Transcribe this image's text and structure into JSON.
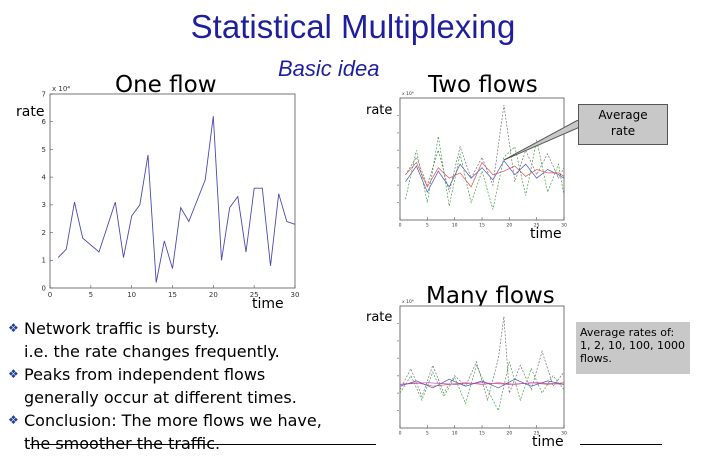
{
  "slide": {
    "title": "Statistical Multiplexing",
    "subtitle": "Basic idea",
    "callout": {
      "line1": "Average",
      "line2": "rate"
    },
    "note": {
      "line1": "Average rates of:",
      "line2": "1, 2, 10, 100, 1000",
      "line3": "flows."
    },
    "bullets": [
      {
        "marker": "❖",
        "line1": "Network traffic is bursty.",
        "line2": "i.e. the rate changes frequently."
      },
      {
        "marker": "❖",
        "line1": "Peaks from independent flows",
        "line2": "generally occur at different times."
      },
      {
        "marker": "❖",
        "line1": "Conclusion: The more flows we have,",
        "line2": "the smoother the traffic."
      }
    ]
  },
  "chart_data": [
    {
      "type": "line",
      "title": "One flow",
      "xlabel": "time",
      "ylabel": "rate",
      "exponent_label": "x 10⁴",
      "xlim": [
        0,
        30
      ],
      "ylim": [
        0,
        7
      ],
      "xticks": [
        "0",
        "5",
        "10",
        "15",
        "20",
        "25",
        "30"
      ],
      "yticks": [
        "0",
        "1",
        "2",
        "3",
        "4",
        "5",
        "6",
        "7"
      ],
      "series": [
        {
          "color": "#4a4ab0",
          "values": [
            [
              1,
              1.1
            ],
            [
              2,
              1.4
            ],
            [
              3,
              3.1
            ],
            [
              4,
              1.8
            ],
            [
              6,
              1.3
            ],
            [
              8,
              3.1
            ],
            [
              9,
              1.1
            ],
            [
              10,
              2.6
            ],
            [
              11,
              3.0
            ],
            [
              12,
              4.8
            ],
            [
              13,
              0.2
            ],
            [
              14,
              1.7
            ],
            [
              15,
              0.7
            ],
            [
              16,
              2.9
            ],
            [
              17,
              2.4
            ],
            [
              19,
              3.9
            ],
            [
              20,
              6.2
            ],
            [
              21,
              1.0
            ],
            [
              22,
              2.9
            ],
            [
              23,
              3.3
            ],
            [
              24,
              1.3
            ],
            [
              25,
              3.6
            ],
            [
              26,
              3.6
            ],
            [
              27,
              0.8
            ],
            [
              28,
              3.4
            ],
            [
              29,
              2.4
            ],
            [
              30,
              2.3
            ]
          ]
        }
      ]
    },
    {
      "type": "line",
      "title": "Two flows",
      "xlabel": "time",
      "ylabel": "rate",
      "exponent_label": "x 10⁴",
      "xlim": [
        0,
        30
      ],
      "ylim": [
        0,
        7
      ],
      "xticks": [
        "0",
        "5",
        "10",
        "15",
        "20",
        "25",
        "30"
      ],
      "series": [
        {
          "color": "#5050c0",
          "dashed": false,
          "values": [
            [
              1,
              2.2
            ],
            [
              3,
              3.1
            ],
            [
              5,
              1.6
            ],
            [
              7,
              2.8
            ],
            [
              9,
              1.9
            ],
            [
              11,
              3.2
            ],
            [
              13,
              2.4
            ],
            [
              15,
              3.0
            ],
            [
              17,
              2.3
            ],
            [
              19,
              3.4
            ],
            [
              21,
              2.6
            ],
            [
              23,
              3.2
            ],
            [
              25,
              2.4
            ],
            [
              27,
              2.9
            ],
            [
              29,
              2.6
            ],
            [
              30,
              2.4
            ]
          ]
        },
        {
          "color": "#e05050",
          "dashed": false,
          "values": [
            [
              1,
              2.6
            ],
            [
              3,
              3.3
            ],
            [
              5,
              1.9
            ],
            [
              7,
              3.0
            ],
            [
              9,
              2.4
            ],
            [
              11,
              2.7
            ],
            [
              13,
              1.9
            ],
            [
              15,
              3.3
            ],
            [
              17,
              2.6
            ],
            [
              19,
              2.8
            ],
            [
              21,
              3.1
            ],
            [
              23,
              2.5
            ],
            [
              25,
              2.9
            ],
            [
              27,
              2.7
            ],
            [
              29,
              2.7
            ],
            [
              30,
              2.5
            ]
          ]
        },
        {
          "color": "#40a040",
          "dashed": true,
          "values": [
            [
              1,
              1.2
            ],
            [
              3,
              4.0
            ],
            [
              5,
              1.0
            ],
            [
              7,
              4.8
            ],
            [
              9,
              0.8
            ],
            [
              11,
              3.8
            ],
            [
              13,
              1.0
            ],
            [
              15,
              2.8
            ],
            [
              17,
              0.6
            ],
            [
              19,
              3.6
            ],
            [
              21,
              4.2
            ],
            [
              23,
              1.4
            ],
            [
              25,
              4.6
            ],
            [
              27,
              1.6
            ],
            [
              29,
              3.2
            ],
            [
              30,
              1.4
            ]
          ]
        },
        {
          "color": "#707070",
          "dashed": true,
          "values": [
            [
              1,
              2.6
            ],
            [
              3,
              3.6
            ],
            [
              5,
              2.0
            ],
            [
              7,
              4.0
            ],
            [
              9,
              1.6
            ],
            [
              11,
              4.2
            ],
            [
              13,
              2.4
            ],
            [
              15,
              3.6
            ],
            [
              17,
              2.0
            ],
            [
              19,
              6.6
            ],
            [
              21,
              2.2
            ],
            [
              23,
              4.0
            ],
            [
              25,
              2.6
            ],
            [
              27,
              3.8
            ],
            [
              29,
              2.4
            ],
            [
              30,
              3.0
            ]
          ]
        }
      ]
    },
    {
      "type": "line",
      "title": "Many flows",
      "xlabel": "time",
      "ylabel": "rate",
      "exponent_label": "x 10⁴",
      "xlim": [
        0,
        30
      ],
      "ylim": [
        0,
        7
      ],
      "xticks": [
        "0",
        "5",
        "10",
        "15",
        "20",
        "25",
        "30"
      ],
      "series": [
        {
          "color": "#e05050",
          "dashed": false,
          "values": [
            [
              0,
              2.5
            ],
            [
              3,
              2.6
            ],
            [
              6,
              2.4
            ],
            [
              9,
              2.5
            ],
            [
              12,
              2.6
            ],
            [
              15,
              2.5
            ],
            [
              18,
              2.6
            ],
            [
              21,
              2.5
            ],
            [
              24,
              2.6
            ],
            [
              27,
              2.5
            ],
            [
              30,
              2.6
            ]
          ]
        },
        {
          "color": "#5050c0",
          "dashed": false,
          "values": [
            [
              0,
              2.4
            ],
            [
              3,
              2.7
            ],
            [
              6,
              2.3
            ],
            [
              9,
              2.8
            ],
            [
              12,
              2.4
            ],
            [
              15,
              2.7
            ],
            [
              18,
              2.3
            ],
            [
              21,
              2.8
            ],
            [
              24,
              2.4
            ],
            [
              27,
              2.7
            ],
            [
              30,
              2.5
            ]
          ]
        },
        {
          "color": "#40a040",
          "dashed": true,
          "values": [
            [
              0,
              2.0
            ],
            [
              2,
              3.0
            ],
            [
              4,
              1.6
            ],
            [
              6,
              3.2
            ],
            [
              8,
              1.8
            ],
            [
              10,
              2.9
            ],
            [
              12,
              1.4
            ],
            [
              14,
              3.6
            ],
            [
              16,
              2.2
            ],
            [
              18,
              1.0
            ],
            [
              20,
              3.8
            ],
            [
              22,
              1.6
            ],
            [
              24,
              3.4
            ],
            [
              26,
              2.0
            ],
            [
              28,
              3.0
            ],
            [
              30,
              2.2
            ]
          ]
        },
        {
          "color": "#707070",
          "dashed": true,
          "values": [
            [
              0,
              2.2
            ],
            [
              2,
              3.4
            ],
            [
              4,
              1.8
            ],
            [
              6,
              3.6
            ],
            [
              8,
              2.0
            ],
            [
              10,
              3.0
            ],
            [
              12,
              2.4
            ],
            [
              14,
              3.8
            ],
            [
              16,
              1.6
            ],
            [
              18,
              4.0
            ],
            [
              19,
              6.4
            ],
            [
              20,
              2.0
            ],
            [
              22,
              3.6
            ],
            [
              24,
              2.2
            ],
            [
              26,
              4.4
            ],
            [
              28,
              2.4
            ],
            [
              30,
              3.2
            ]
          ]
        },
        {
          "color": "#c040c0",
          "dashed": false,
          "values": [
            [
              0,
              2.5
            ],
            [
              5,
              2.6
            ],
            [
              10,
              2.5
            ],
            [
              15,
              2.6
            ],
            [
              20,
              2.5
            ],
            [
              25,
              2.6
            ],
            [
              30,
              2.5
            ]
          ]
        }
      ]
    }
  ]
}
